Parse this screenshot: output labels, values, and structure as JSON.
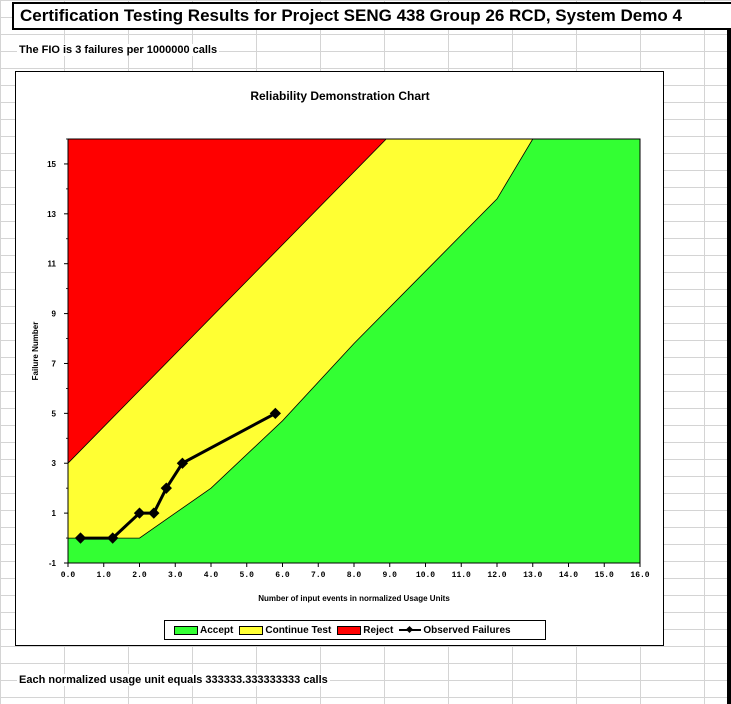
{
  "sheet": {
    "title": "Certification Testing Results for Project SENG 438 Group 26 RCD, System Demo 4",
    "fio_note": "The FIO is 3 failures per 1000000 calls",
    "footer_note": "Each normalized usage unit equals 333333.333333333 calls"
  },
  "chart_data": {
    "type": "area",
    "title": "Reliability Demonstration Chart",
    "xlabel": "Number of input events in normalized Usage Units",
    "ylabel": "Failure Number",
    "xlim": [
      0,
      16
    ],
    "ylim": [
      -1,
      16
    ],
    "x_ticks": [
      "0.0",
      "1.0",
      "2.0",
      "3.0",
      "4.0",
      "5.0",
      "6.0",
      "7.0",
      "8.0",
      "9.0",
      "10.0",
      "11.0",
      "12.0",
      "13.0",
      "14.0",
      "15.0",
      "16.0"
    ],
    "y_ticks": [
      "-1",
      "1",
      "3",
      "5",
      "7",
      "9",
      "11",
      "13",
      "15"
    ],
    "legend_position": "bottom",
    "regions": [
      {
        "name": "Accept",
        "color": "#33ff33"
      },
      {
        "name": "Continue Test",
        "color": "#ffff33"
      },
      {
        "name": "Reject",
        "color": "#ff0000"
      }
    ],
    "boundaries": {
      "reject_continue": {
        "x": [
          0,
          8.9
        ],
        "y": [
          3,
          16
        ]
      },
      "continue_accept": {
        "x": [
          2.0,
          3.0,
          4.0,
          6.0,
          8.0,
          10.0,
          12.0,
          13.0
        ],
        "y": [
          0,
          1,
          2,
          4.7,
          7.8,
          10.7,
          13.6,
          16
        ]
      }
    },
    "series": [
      {
        "name": "Observed Failures",
        "color": "#000000",
        "x": [
          0.35,
          1.25,
          2.0,
          2.4,
          2.75,
          3.2,
          5.8
        ],
        "y": [
          0,
          0,
          1,
          1,
          2,
          3,
          5
        ]
      }
    ]
  }
}
